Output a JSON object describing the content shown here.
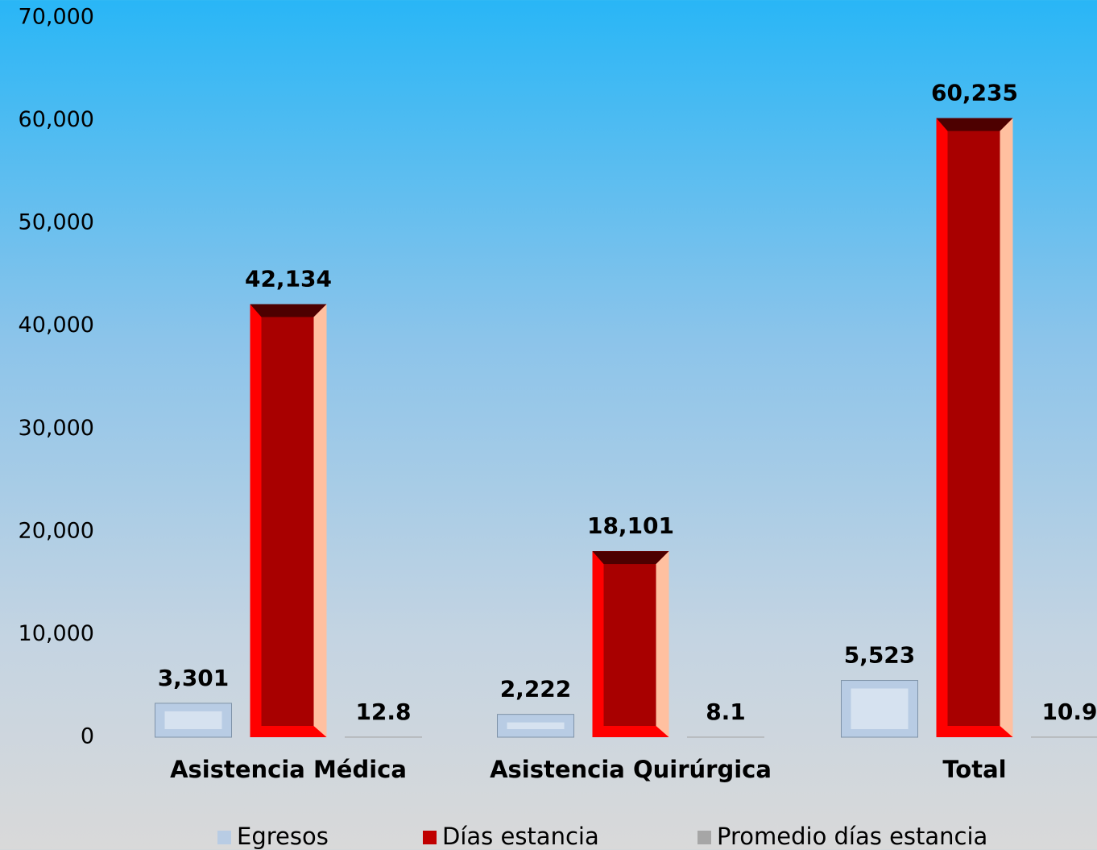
{
  "chart_data": {
    "type": "bar",
    "categories": [
      "Asistencia Médica",
      "Asistencia Quirúrgica",
      "Total"
    ],
    "series": [
      {
        "name": "Egresos",
        "color": "#b8cce4",
        "values": [
          3301,
          2222,
          5523
        ],
        "value_labels": [
          "3,301",
          "2,222",
          "5,523"
        ]
      },
      {
        "name": "Días estancia",
        "color": "#c00000",
        "values": [
          42134,
          18101,
          60235
        ],
        "value_labels": [
          "42,134",
          "18,101",
          "60,235"
        ]
      },
      {
        "name": "Promedio días estancia",
        "color": "#a6a6a6",
        "values": [
          12.8,
          8.1,
          10.9
        ]
      }
    ],
    "ylim": [
      0,
      70000
    ],
    "yticks": [
      0,
      {
        "value": 10000,
        "label": "10,000"
      },
      {
        "value": 20000,
        "label": "20,000"
      },
      {
        "value": 30000,
        "label": "30,000"
      },
      {
        "value": 40000,
        "label": "40,000"
      },
      {
        "value": 50000,
        "label": "50,000"
      },
      {
        "value": 60000,
        "label": "60,000"
      },
      {
        "value": 70000,
        "label": "70,000"
      }
    ],
    "grid": false,
    "legend": "bottom"
  }
}
